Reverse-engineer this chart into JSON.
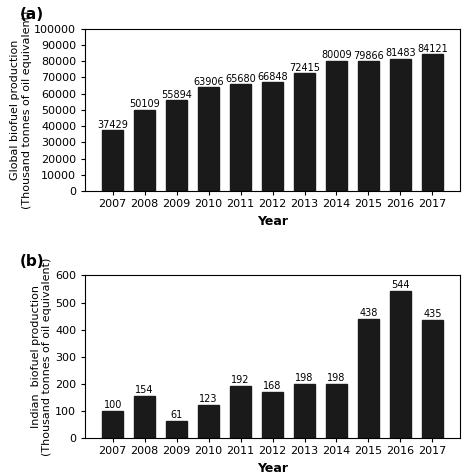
{
  "years": [
    2007,
    2008,
    2009,
    2010,
    2011,
    2012,
    2013,
    2014,
    2015,
    2016,
    2017
  ],
  "global_values": [
    37429,
    50109,
    55894,
    63906,
    65680,
    66848,
    72415,
    80009,
    79866,
    81483,
    84121
  ],
  "india_values": [
    100,
    154,
    61,
    123,
    192,
    168,
    198,
    198,
    438,
    544,
    435
  ],
  "bar_color": "#1a1a1a",
  "global_ylabel": "Global biofuel production\n(Thousand tonnes of oil equivalent)",
  "india_ylabel": "Indian  biofuel production\n(Thousand tonnes of oil equivalent)",
  "xlabel": "Year",
  "global_ylim": [
    0,
    100000
  ],
  "global_yticks": [
    0,
    10000,
    20000,
    30000,
    40000,
    50000,
    60000,
    70000,
    80000,
    90000,
    100000
  ],
  "india_ylim": [
    0,
    600
  ],
  "india_yticks": [
    0,
    100,
    200,
    300,
    400,
    500,
    600
  ],
  "label_a": "(a)",
  "label_b": "(b)",
  "fontsize_ylabel": 8,
  "fontsize_xlabel": 9,
  "fontsize_tick": 8,
  "fontsize_anno": 7,
  "fontsize_panel_label": 11
}
